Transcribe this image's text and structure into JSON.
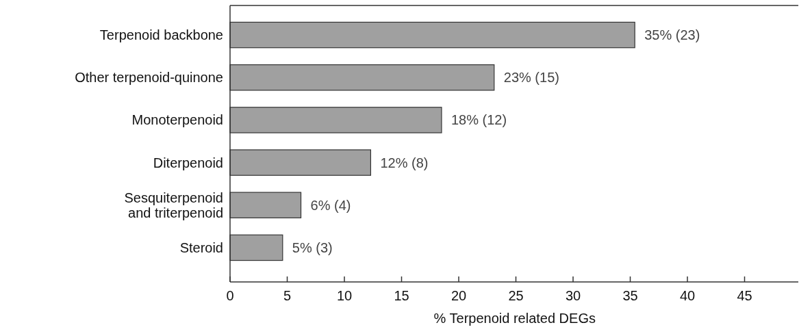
{
  "chart_data": {
    "type": "bar",
    "orientation": "horizontal",
    "xlabel": "% Terpenoid related DEGs",
    "categories": [
      "Terpenoid backbone",
      "Other terpenoid-quinone",
      "Monoterpenoid",
      "Diterpenoid",
      "Sesquiterpenoid\nand triterpenoid",
      "Steroid"
    ],
    "values": [
      35.4,
      23.1,
      18.5,
      12.3,
      6.2,
      4.6
    ],
    "value_labels": [
      "35% (23)",
      "23% (15)",
      "18% (12)",
      "12% (8)",
      "6% (4)",
      "5% (3)"
    ],
    "color": "#a0a0a0",
    "xlim": [
      0,
      49.7
    ],
    "xticks": [
      0,
      5,
      10,
      15,
      20,
      25,
      30,
      35,
      40,
      45
    ]
  }
}
